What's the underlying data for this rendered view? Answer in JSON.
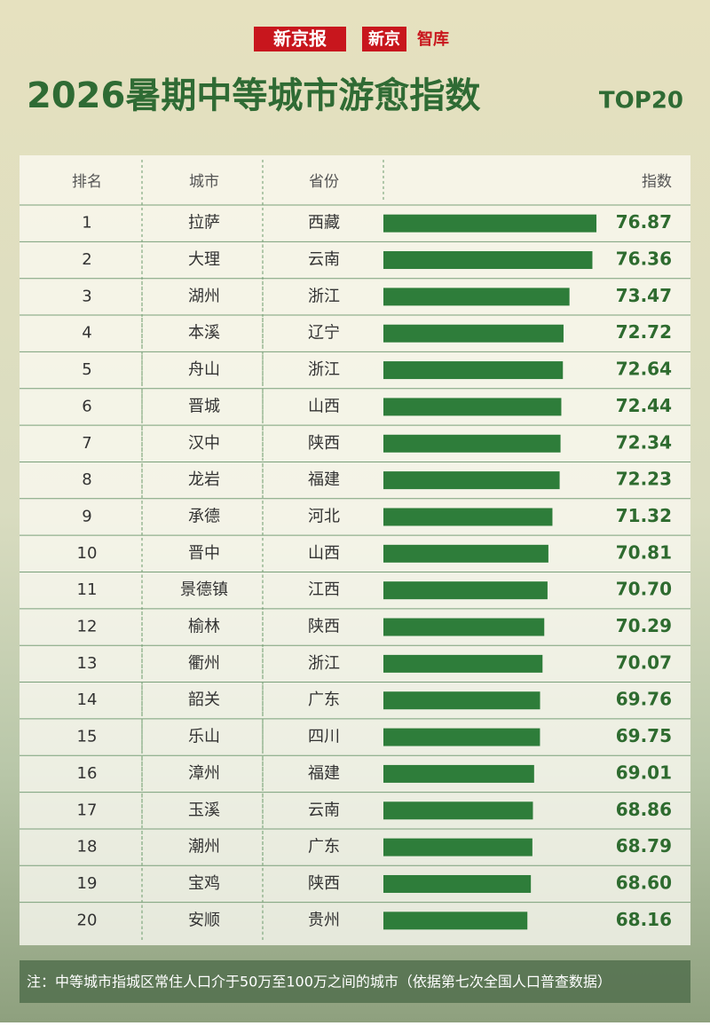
{
  "header": {
    "logo1": "新京报",
    "logo2": "新京",
    "logo3": "智库"
  },
  "chart_data": {
    "type": "bar",
    "title": "2026暑期中等城市游愈指数",
    "title_suffix": "TOP20",
    "columns": [
      "排名",
      "城市",
      "省份",
      "指数"
    ],
    "ranks": [
      1,
      2,
      3,
      4,
      5,
      6,
      7,
      8,
      9,
      10,
      11,
      12,
      13,
      14,
      15,
      16,
      17,
      18,
      19,
      20
    ],
    "categories": [
      "拉萨",
      "大理",
      "湖州",
      "本溪",
      "舟山",
      "晋城",
      "汉中",
      "龙岩",
      "承德",
      "晋中",
      "景德镇",
      "榆林",
      "衢州",
      "韶关",
      "乐山",
      "漳州",
      "玉溪",
      "潮州",
      "宝鸡",
      "安顺"
    ],
    "provinces": [
      "西藏",
      "云南",
      "浙江",
      "辽宁",
      "浙江",
      "山西",
      "陕西",
      "福建",
      "河北",
      "山西",
      "江西",
      "陕西",
      "浙江",
      "广东",
      "四川",
      "福建",
      "云南",
      "广东",
      "陕西",
      "贵州"
    ],
    "values": [
      76.87,
      76.36,
      73.47,
      72.72,
      72.64,
      72.44,
      72.34,
      72.23,
      71.32,
      70.81,
      70.7,
      70.29,
      70.07,
      69.76,
      69.75,
      69.01,
      68.86,
      68.79,
      68.6,
      68.16
    ],
    "value_labels": [
      "76.87",
      "76.36",
      "73.47",
      "72.72",
      "72.64",
      "72.44",
      "72.34",
      "72.23",
      "71.32",
      "70.81",
      "70.70",
      "70.29",
      "70.07",
      "69.76",
      "69.75",
      "69.01",
      "68.86",
      "68.79",
      "68.60",
      "68.16"
    ],
    "color": "#2e7d3a",
    "xlim": [
      50,
      80
    ],
    "note": "注：中等城市指城区常住人口介于50万至100万之间的城市（依据第七次全国人口普查数据）"
  }
}
